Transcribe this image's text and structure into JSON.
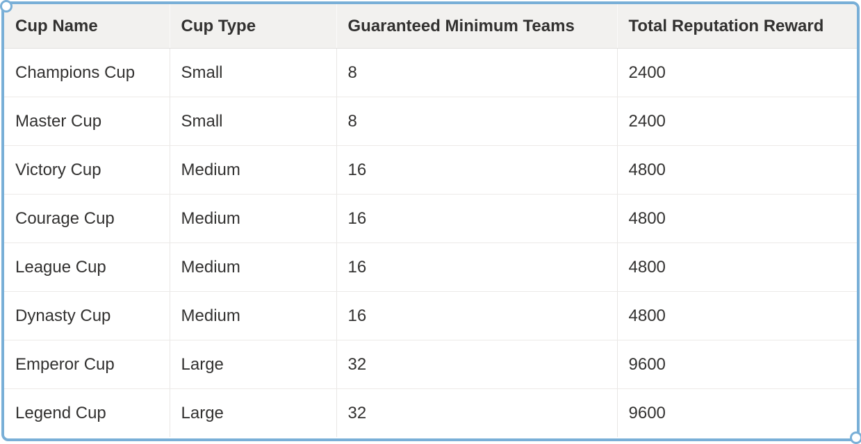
{
  "colors": {
    "selection_border": "#79afd7",
    "header_bg": "#f2f1ef",
    "grid_line": "#e8e6e4",
    "text": "#323130"
  },
  "selection": {
    "handles": [
      "top-left",
      "bottom-right"
    ]
  },
  "table": {
    "columns": [
      "Cup Name",
      "Cup Type",
      "Guaranteed Minimum Teams",
      "Total Reputation Reward"
    ],
    "rows": [
      [
        "Champions Cup",
        "Small",
        "8",
        "2400"
      ],
      [
        "Master Cup",
        "Small",
        "8",
        "2400"
      ],
      [
        "Victory Cup",
        "Medium",
        "16",
        "4800"
      ],
      [
        "Courage Cup",
        "Medium",
        "16",
        "4800"
      ],
      [
        "League Cup",
        "Medium",
        "16",
        "4800"
      ],
      [
        "Dynasty Cup",
        "Medium",
        "16",
        "4800"
      ],
      [
        "Emperor Cup",
        "Large",
        "32",
        "9600"
      ],
      [
        "Legend Cup",
        "Large",
        "32",
        "9600"
      ]
    ]
  }
}
